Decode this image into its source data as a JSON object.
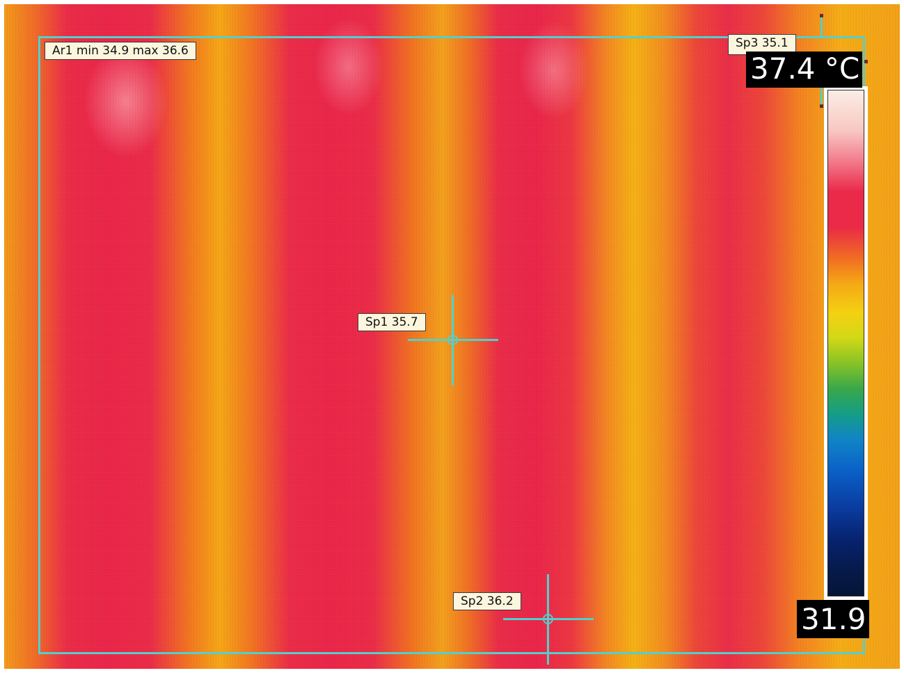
{
  "image": {
    "kind": "infrared thermal camera image",
    "palette_colors": [
      "#051538",
      "#0a62c8",
      "#39a84a",
      "#f3d112",
      "#f5a615",
      "#ea2a4a",
      "#fbeee6"
    ],
    "overlay_color": "#52d0cc"
  },
  "area": {
    "label": "Ar1 min 34.9 max 36.6",
    "min": 34.9,
    "max": 36.6
  },
  "spots": [
    {
      "label": "Sp1 35.7",
      "value": 35.7
    },
    {
      "label": "Sp2 36.2",
      "value": 36.2
    },
    {
      "label": "Sp3 35.1",
      "value": 35.1
    }
  ],
  "scale": {
    "max_label": "37.4 °C",
    "min_label": "31.9",
    "max": 37.4,
    "min": 31.9,
    "unit": "°C"
  }
}
